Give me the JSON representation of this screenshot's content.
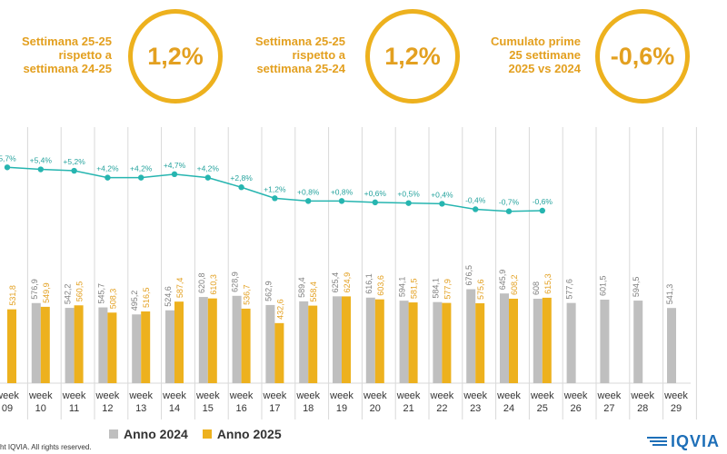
{
  "kpis": [
    {
      "label_lines": [
        "Settimana 25-25",
        "rispetto a",
        "settimana 24-25"
      ],
      "value": "1,2%"
    },
    {
      "label_lines": [
        "Settimana 25-25",
        "rispetto a",
        "settimana 25-24"
      ],
      "value": "1,2%"
    },
    {
      "label_lines": [
        "Cumulato prime",
        "25 settimane",
        "2025 vs 2024"
      ],
      "value": "-0,6%"
    }
  ],
  "chart_data": {
    "type": "bar",
    "categories": [
      "week 09",
      "week 10",
      "week 11",
      "week 12",
      "week 13",
      "week 14",
      "week 15",
      "week 16",
      "week 17",
      "week 18",
      "week 19",
      "week 20",
      "week 21",
      "week 22",
      "week 23",
      "week 24",
      "week 25",
      "week 26",
      "week 27",
      "week 28",
      "week 29"
    ],
    "series": [
      {
        "name": "Anno 2024",
        "color": "#BFBFBF",
        "values": [
          null,
          576.9,
          542.2,
          545.7,
          495.2,
          524.6,
          620.8,
          628.9,
          562.9,
          589.4,
          625.4,
          616.1,
          594.1,
          584.1,
          676.5,
          645.9,
          608.0,
          577.6,
          601.5,
          594.5,
          541.3
        ],
        "labels": [
          "",
          "576,9",
          "542,2",
          "545,7",
          "495,2",
          "524,6",
          "620,8",
          "628,9",
          "562,9",
          "589,4",
          "625,4",
          "616,1",
          "594,1",
          "584,1",
          "676,5",
          "645,9",
          "608",
          "577,6",
          "601,5",
          "594,5",
          "541,3"
        ]
      },
      {
        "name": "Anno 2025",
        "color": "#EDB11E",
        "values": [
          531.8,
          549.9,
          560.5,
          508.3,
          516.5,
          587.4,
          610.3,
          536.7,
          432.6,
          558.4,
          624.9,
          603.6,
          581.5,
          577.9,
          575.6,
          608.2,
          615.3,
          null,
          null,
          null,
          null
        ],
        "labels": [
          "531,8",
          "549,9",
          "560,5",
          "508,3",
          "516,5",
          "587,4",
          "610,3",
          "536,7",
          "432,6",
          "558,4",
          "624,9",
          "603,6",
          "581,5",
          "577,9",
          "575,6",
          "608,2",
          "615,3",
          "",
          "",
          "",
          ""
        ]
      }
    ],
    "cumulative_line": {
      "color": "#26B5B0",
      "values": [
        5.7,
        5.4,
        5.2,
        4.2,
        4.2,
        4.7,
        4.2,
        2.8,
        1.2,
        0.8,
        0.8,
        0.6,
        0.5,
        0.4,
        -0.4,
        -0.7,
        -0.6,
        null,
        null,
        null,
        null
      ],
      "labels": [
        "5,7%",
        "+5,4%",
        "+5,2%",
        "+4,2%",
        "+4,2%",
        "+4,7%",
        "+4,2%",
        "+2,8%",
        "+1,2%",
        "+0,8%",
        "+0,8%",
        "+0,6%",
        "+0,5%",
        "+0,4%",
        "-0,4%",
        "-0,7%",
        "-0,6%",
        "",
        "",
        "",
        ""
      ]
    },
    "legend": [
      "Anno 2024",
      "Anno 2025"
    ],
    "legend_position": "bottom"
  },
  "footer": {
    "copyright": "ht IQVIA. All rights reserved.",
    "logo": "IQVIA"
  }
}
